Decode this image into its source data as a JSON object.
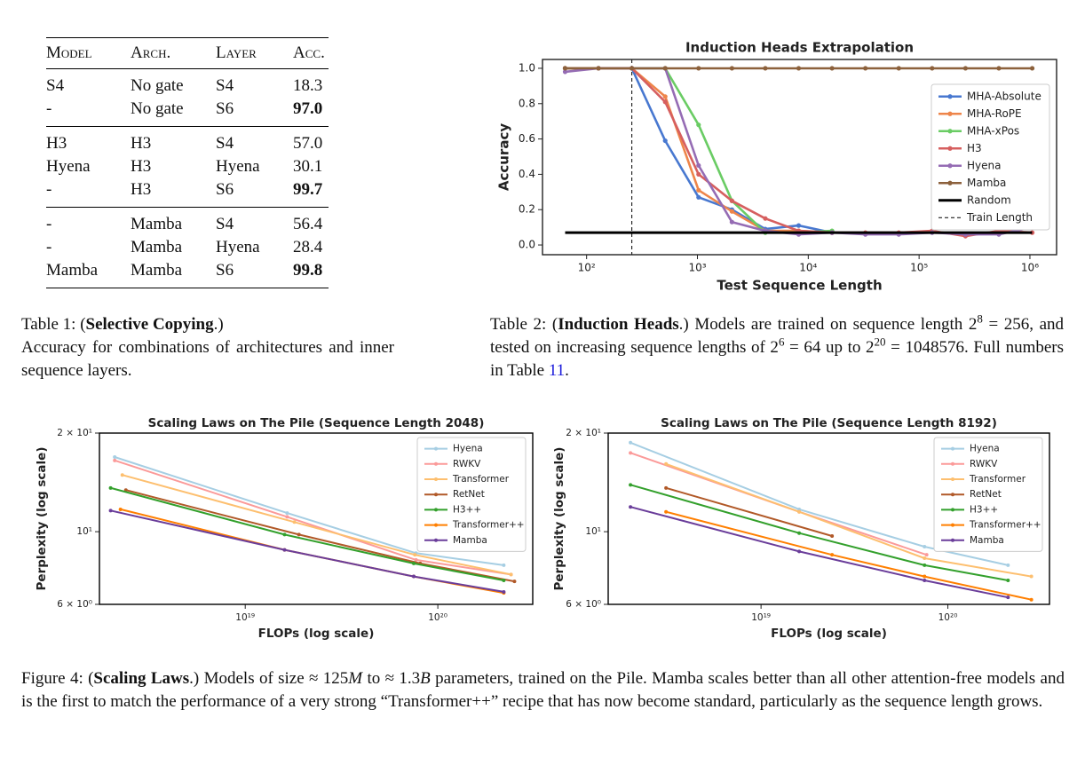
{
  "table1": {
    "header": [
      "Model",
      "Arch.",
      "Layer",
      "Acc."
    ],
    "groups": [
      {
        "rows": [
          {
            "cells": [
              "S4",
              "No gate",
              "S4",
              "18.3"
            ]
          },
          {
            "cells": [
              "-",
              "No gate",
              "S6",
              "97.0"
            ],
            "bold_acc": true
          }
        ]
      },
      {
        "rows": [
          {
            "cells": [
              "H3",
              "H3",
              "S4",
              "57.0"
            ]
          },
          {
            "cells": [
              "Hyena",
              "H3",
              "Hyena",
              "30.1"
            ]
          },
          {
            "cells": [
              "-",
              "H3",
              "S6",
              "99.7"
            ],
            "bold_acc": true
          }
        ]
      },
      {
        "rows": [
          {
            "cells": [
              "-",
              "Mamba",
              "S4",
              "56.4"
            ]
          },
          {
            "cells": [
              "-",
              "Mamba",
              "Hyena",
              "28.4"
            ]
          },
          {
            "cells": [
              "Mamba",
              "Mamba",
              "S6",
              "99.8"
            ],
            "bold_acc": true
          }
        ]
      }
    ]
  },
  "table1_caption": [
    {
      "text": "Table 1: ("
    },
    {
      "text": "Selective Copying",
      "bold": true
    },
    {
      "text": ".)"
    },
    {
      "text": "Accuracy for combinations of architectures and inner sequence layers.",
      "break_before": true
    }
  ],
  "table2_caption": [
    {
      "text": "Table 2: ("
    },
    {
      "text": "Induction Heads",
      "bold": true
    },
    {
      "text": ".) Models are trained on sequence length 2"
    },
    {
      "text": "8",
      "sup": true
    },
    {
      "text": " = 256, and tested on increasing sequence lengths of 2"
    },
    {
      "text": "6",
      "sup": true
    },
    {
      "text": " = 64 up to 2"
    },
    {
      "text": "20",
      "sup": true
    },
    {
      "text": " = 1048576. Full numbers in Table "
    },
    {
      "text": "11",
      "link": true
    },
    {
      "text": "."
    }
  ],
  "figure4_caption": [
    {
      "text": "Figure 4: ("
    },
    {
      "text": "Scaling Laws",
      "bold": true
    },
    {
      "text": ".) Models of size ≈ 125"
    },
    {
      "text": "M",
      "italic": true
    },
    {
      "text": " to ≈ 1.3"
    },
    {
      "text": "B",
      "italic": true
    },
    {
      "text": " parameters, trained on the Pile. Mamba scales better than all other attention-free models and is the first to match the performance of a very strong “Transformer++” recipe that has now become standard, particularly as the sequence length grows."
    }
  ],
  "chart_data": [
    {
      "type": "line",
      "title": "Induction Heads Extrapolation",
      "x_label": "Test Sequence Length",
      "y_label": "Accuracy",
      "x_scale": "log",
      "y_scale": "linear",
      "x": [
        64,
        128,
        256,
        512,
        1024,
        2048,
        4096,
        8192,
        16384,
        32768,
        65536,
        131072,
        262144,
        524288,
        1048576
      ],
      "xlim": [
        40,
        1740000
      ],
      "ylim": [
        -0.055,
        1.05
      ],
      "xticks": [
        {
          "value": 100,
          "label": "10²"
        },
        {
          "value": 1000,
          "label": "10³"
        },
        {
          "value": 10000,
          "label": "10⁴"
        },
        {
          "value": 100000,
          "label": "10⁵"
        },
        {
          "value": 1000000,
          "label": "10⁶"
        }
      ],
      "yticks": [
        {
          "value": 0,
          "label": "0.0"
        },
        0.2,
        0.4,
        0.6,
        0.8,
        {
          "value": 1,
          "label": "1.0"
        }
      ],
      "legend_loc": "center right",
      "series": [
        {
          "name": "MHA-Absolute",
          "color": "#4878d0",
          "values": [
            1,
            1,
            1,
            0.59,
            0.27,
            0.2,
            0.09,
            0.11,
            0.07,
            null,
            null,
            null,
            null,
            null,
            null
          ]
        },
        {
          "name": "MHA-RoPE",
          "color": "#ee854a",
          "values": [
            1,
            1,
            1,
            0.84,
            0.31,
            0.19,
            0.08,
            0.08,
            0.07,
            null,
            null,
            null,
            null,
            null,
            null
          ]
        },
        {
          "name": "MHA-xPos",
          "color": "#6acc64",
          "values": [
            1,
            1,
            1,
            1,
            0.68,
            0.25,
            0.07,
            0.07,
            0.08,
            null,
            null,
            null,
            null,
            null,
            null
          ]
        },
        {
          "name": "H3",
          "color": "#d65f5f",
          "values": [
            1,
            1,
            1,
            0.81,
            0.4,
            0.25,
            0.15,
            0.08,
            0.07,
            0.07,
            0.07,
            0.08,
            0.05,
            0.08,
            0.07
          ]
        },
        {
          "name": "Hyena",
          "color": "#956cb4",
          "values": [
            0.98,
            1,
            1,
            1,
            0.45,
            0.13,
            0.08,
            0.06,
            0.07,
            0.06,
            0.06,
            0.07,
            0.06,
            0.06,
            0.1
          ]
        },
        {
          "name": "Mamba",
          "color": "#8c613c",
          "values": [
            1,
            1,
            1,
            1,
            1,
            1,
            1,
            1,
            1,
            1,
            1,
            1,
            1,
            1,
            1
          ]
        },
        {
          "name": "Random",
          "color": "#000000",
          "marker": false,
          "values": [
            0.07,
            0.07,
            0.07,
            0.07,
            0.07,
            0.07,
            0.07,
            0.07,
            0.07,
            0.07,
            0.07,
            0.07,
            0.07,
            0.07,
            0.07
          ]
        }
      ],
      "reference_lines": [
        {
          "name": "Train Length",
          "x": 256,
          "color": "#000000",
          "style": "dashed"
        }
      ]
    },
    {
      "type": "line",
      "title": "Scaling Laws on The Pile (Sequence Length 2048)",
      "x_label": "FLOPs (log scale)",
      "y_label": "Perplexity (log scale)",
      "x_scale": "log",
      "y_scale": "log",
      "xlim": [
        1.75e+18,
        3.11e+20
      ],
      "ylim": [
        6,
        20
      ],
      "xticks": [
        {
          "value": 1e+19,
          "label": "10¹⁹"
        },
        {
          "value": 1e+20,
          "label": "10²⁰"
        }
      ],
      "yticks": [
        {
          "value": 6,
          "label": "6 × 10⁰"
        },
        {
          "value": 10,
          "label": "10¹"
        },
        {
          "value": 20,
          "label": "2 × 10¹"
        }
      ],
      "legend_loc": "upper right",
      "series": [
        {
          "name": "Hyena",
          "color": "#a6cee3",
          "x": [
            2.1e+18,
            1.65e+19,
            7.7e+19,
            2.2e+20
          ],
          "values": [
            16.9,
            11.4,
            8.6,
            7.9
          ]
        },
        {
          "name": "RWKV",
          "color": "#fb9a99",
          "x": [
            2.1e+18,
            1.65e+19,
            7.7e+19,
            2.4e+20
          ],
          "values": [
            16.5,
            11.1,
            8.2,
            7.4
          ]
        },
        {
          "name": "Transformer",
          "color": "#fdbf6f",
          "x": [
            2.3e+18,
            1.8e+19,
            7.6e+19,
            2.4e+20
          ],
          "values": [
            14.9,
            10.7,
            8.5,
            7.4
          ]
        },
        {
          "name": "RetNet",
          "color": "#b15928",
          "x": [
            2.4e+18,
            1.9e+19,
            8.1e+19,
            2.5e+20
          ],
          "values": [
            13.4,
            9.8,
            8,
            7.05
          ]
        },
        {
          "name": "H3++",
          "color": "#33a02c",
          "x": [
            2e+18,
            1.6e+19,
            7.5e+19,
            2.2e+20
          ],
          "values": [
            13.6,
            9.8,
            8,
            7.1
          ]
        },
        {
          "name": "Transformer++",
          "color": "#ff7f00",
          "x": [
            2.25e+18,
            1.6e+19,
            7.5e+19,
            2.2e+20
          ],
          "values": [
            11.7,
            8.8,
            7.3,
            6.5
          ]
        },
        {
          "name": "Mamba",
          "color": "#6a3d9a",
          "x": [
            2e+18,
            1.6e+19,
            7.5e+19,
            2.2e+20
          ],
          "values": [
            11.6,
            8.8,
            7.3,
            6.55
          ]
        }
      ]
    },
    {
      "type": "line",
      "title": "Scaling Laws on The Pile (Sequence Length 8192)",
      "x_label": "FLOPs (log scale)",
      "y_label": "Perplexity (log scale)",
      "x_scale": "log",
      "y_scale": "log",
      "xlim": [
        1.52e+18,
        3.5e+20
      ],
      "ylim": [
        6,
        20
      ],
      "xticks": [
        {
          "value": 1e+19,
          "label": "10¹⁹"
        },
        {
          "value": 1e+20,
          "label": "10²⁰"
        }
      ],
      "yticks": [
        {
          "value": 6,
          "label": "6 × 10⁰"
        },
        {
          "value": 10,
          "label": "10¹"
        },
        {
          "value": 20,
          "label": "2 × 10¹"
        }
      ],
      "legend_loc": "upper right",
      "series": [
        {
          "name": "Hyena",
          "color": "#a6cee3",
          "x": [
            2e+18,
            1.6e+19,
            7.5e+19,
            2.1e+20
          ],
          "values": [
            18.7,
            11.7,
            9,
            7.9
          ]
        },
        {
          "name": "RWKV",
          "color": "#fb9a99",
          "x": [
            2e+18,
            1.6e+19,
            7.7e+19
          ],
          "values": [
            17.4,
            11.5,
            8.5
          ]
        },
        {
          "name": "Transformer",
          "color": "#fdbf6f",
          "x": [
            3.1e+18,
            1.6e+19,
            7.5e+19,
            2.8e+20
          ],
          "values": [
            16.1,
            11.5,
            8.3,
            7.3
          ]
        },
        {
          "name": "RetNet",
          "color": "#b15928",
          "x": [
            3.1e+18,
            2.4e+19
          ],
          "values": [
            13.6,
            9.7
          ]
        },
        {
          "name": "H3++",
          "color": "#33a02c",
          "x": [
            2e+18,
            1.6e+19,
            7.5e+19,
            2.1e+20
          ],
          "values": [
            13.9,
            9.9,
            7.9,
            7.1
          ]
        },
        {
          "name": "Transformer++",
          "color": "#ff7f00",
          "x": [
            3.1e+18,
            2.4e+19,
            7.5e+19,
            2.8e+20
          ],
          "values": [
            11.5,
            8.5,
            7.3,
            6.2
          ]
        },
        {
          "name": "Mamba",
          "color": "#6a3d9a",
          "x": [
            2e+18,
            1.6e+19,
            7.5e+19,
            2.1e+20
          ],
          "values": [
            11.9,
            8.7,
            7.1,
            6.3
          ]
        }
      ]
    }
  ]
}
